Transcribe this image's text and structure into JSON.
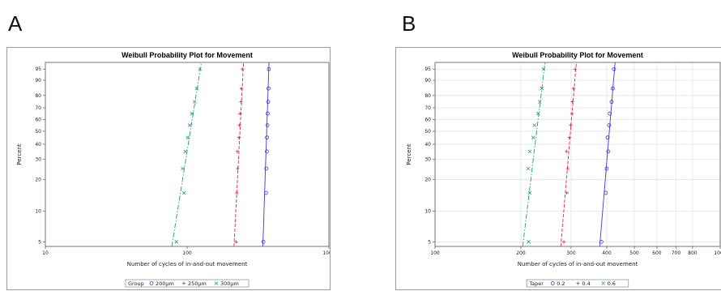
{
  "panels": [
    {
      "letter": "A"
    },
    {
      "letter": "B"
    }
  ],
  "chart_data": [
    {
      "type": "scatter",
      "title": "Weibull Probability Plot for Movement",
      "xlabel": "Number of cycles of in-and-out movement",
      "ylabel": "Percent",
      "x_scale": "log",
      "xlim": [
        10,
        1000
      ],
      "x_ticks": [
        10,
        100,
        1000
      ],
      "x_tick_labels": [
        "10",
        "100",
        "1000"
      ],
      "y_scale": "weibull",
      "ylim": [
        4.5,
        97
      ],
      "y_ticks": [
        5,
        10,
        20,
        30,
        40,
        50,
        60,
        70,
        80,
        90,
        95
      ],
      "y_tick_labels": [
        "5",
        "10",
        "20",
        "30",
        "40",
        "50",
        "60",
        "70",
        "80",
        "90",
        "95"
      ],
      "grid": false,
      "legend_title": "Group",
      "legend_position": "bottom",
      "series": [
        {
          "name": "200μm",
          "marker": "o",
          "color": "#3b3bd6",
          "line": "solid",
          "points": [
            [
              345,
              5
            ],
            [
              360,
              15
            ],
            [
              362,
              25
            ],
            [
              365,
              35
            ],
            [
              366,
              45
            ],
            [
              368,
              55
            ],
            [
              370,
              65
            ],
            [
              373,
              75
            ],
            [
              375,
              85
            ],
            [
              377,
              95
            ]
          ],
          "fit": [
            [
              342,
              4.5
            ],
            [
              378,
              97
            ]
          ]
        },
        {
          "name": "250μm",
          "marker": "+",
          "color": "#e0263a",
          "line": "dash",
          "points": [
            [
              222,
              5
            ],
            [
              224,
              15
            ],
            [
              227,
              25
            ],
            [
              226,
              35
            ],
            [
              232,
              45
            ],
            [
              234,
              55
            ],
            [
              236,
              65
            ],
            [
              240,
              75
            ],
            [
              241,
              85
            ],
            [
              245,
              95
            ]
          ],
          "fit": [
            [
              214,
              4.5
            ],
            [
              250,
              97
            ]
          ]
        },
        {
          "name": "300μm",
          "marker": "x",
          "color": "#1d9e86",
          "line": "dashdot",
          "points": [
            [
              84,
              5
            ],
            [
              95,
              15
            ],
            [
              93,
              25
            ],
            [
              97,
              35
            ],
            [
              101,
              45
            ],
            [
              104,
              55
            ],
            [
              108,
              65
            ],
            [
              113,
              75
            ],
            [
              117,
              85
            ],
            [
              123,
              95
            ]
          ],
          "fit": [
            [
              78,
              4.5
            ],
            [
              126,
              97
            ]
          ]
        }
      ]
    },
    {
      "type": "scatter",
      "title": "Weibull Probability Plot for Movement",
      "xlabel": "Number of cycles of in-and-out movement",
      "ylabel": "Percent",
      "x_scale": "log",
      "xlim": [
        100,
        1000
      ],
      "x_ticks": [
        100,
        200,
        300,
        400,
        500,
        600,
        700,
        800,
        1000
      ],
      "x_tick_labels": [
        "100",
        "200",
        "300",
        "400",
        "500",
        "600",
        "700",
        "800",
        "1000"
      ],
      "y_scale": "weibull",
      "ylim": [
        4.5,
        97
      ],
      "y_ticks": [
        5,
        10,
        20,
        30,
        40,
        50,
        60,
        70,
        80,
        90,
        95
      ],
      "y_tick_labels": [
        "5",
        "10",
        "20",
        "30",
        "40",
        "50",
        "60",
        "70",
        "80",
        "90",
        "95"
      ],
      "grid": true,
      "legend_title": "Taper",
      "legend_position": "bottom",
      "series": [
        {
          "name": "0.2",
          "marker": "o",
          "color": "#3b3bd6",
          "line": "solid",
          "points": [
            [
              383,
              5
            ],
            [
              397,
              15
            ],
            [
              400,
              25
            ],
            [
              405,
              35
            ],
            [
              403,
              45
            ],
            [
              408,
              55
            ],
            [
              410,
              65
            ],
            [
              416,
              75
            ],
            [
              420,
              85
            ],
            [
              424,
              95
            ]
          ],
          "fit": [
            [
              378,
              4.5
            ],
            [
              428,
              97
            ]
          ]
        },
        {
          "name": "0.4",
          "marker": "+",
          "color": "#e0263a",
          "line": "dash",
          "points": [
            [
              283,
              5
            ],
            [
              290,
              15
            ],
            [
              292,
              25
            ],
            [
              289,
              35
            ],
            [
              296,
              45
            ],
            [
              299,
              55
            ],
            [
              302,
              65
            ],
            [
              303,
              75
            ],
            [
              306,
              85
            ],
            [
              310,
              95
            ]
          ],
          "fit": [
            [
              276,
              4.5
            ],
            [
              313,
              97
            ]
          ]
        },
        {
          "name": "0.6",
          "marker": "x",
          "color": "#1d9e86",
          "line": "dashdot",
          "points": [
            [
              213,
              5
            ],
            [
              215,
              15
            ],
            [
              212,
              25
            ],
            [
              215,
              35
            ],
            [
              221,
              45
            ],
            [
              223,
              55
            ],
            [
              230,
              65
            ],
            [
              233,
              75
            ],
            [
              237,
              85
            ],
            [
              240,
              95
            ]
          ],
          "fit": [
            [
              203,
              4.5
            ],
            [
              243,
              97
            ]
          ]
        }
      ]
    }
  ]
}
